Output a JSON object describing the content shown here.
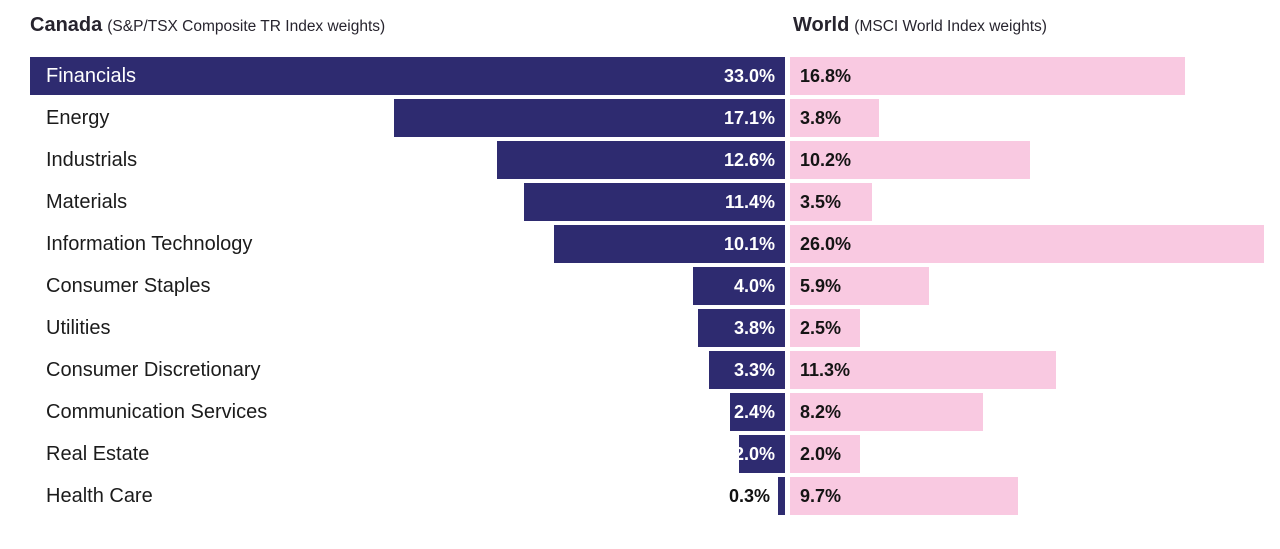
{
  "header": {
    "left_title": "Canada",
    "left_subtitle": "(S&P/TSX Composite TR Index weights)",
    "right_title": "World",
    "right_subtitle": "(MSCI World Index weights)"
  },
  "colors": {
    "canada_bar": "#2e2b70",
    "world_bar": "#f9c9e1"
  },
  "chart_data": {
    "type": "bar",
    "variant": "paired-horizontal-comparison",
    "title": "",
    "legend_position": "column headers (top)",
    "grid": false,
    "categories": [
      "Financials",
      "Energy",
      "Industrials",
      "Materials",
      "Information Technology",
      "Consumer Staples",
      "Utilities",
      "Consumer Discretionary",
      "Communication Services",
      "Real Estate",
      "Health Care"
    ],
    "series": [
      {
        "name": "Canada (S&P/TSX Composite TR Index weights)",
        "values": [
          33.0,
          17.1,
          12.6,
          11.4,
          10.1,
          4.0,
          3.8,
          3.3,
          2.4,
          2.0,
          0.3
        ]
      },
      {
        "name": "World (MSCI World Index weights)",
        "values": [
          16.8,
          3.8,
          10.2,
          3.5,
          26.0,
          5.9,
          2.5,
          11.3,
          8.2,
          2.0,
          9.7
        ]
      }
    ],
    "value_labels": {
      "canada": [
        "33.0%",
        "17.1%",
        "12.6%",
        "11.4%",
        "10.1%",
        "4.0%",
        "3.8%",
        "3.3%",
        "2.4%",
        "2.0%",
        "0.3%"
      ],
      "world": [
        "16.8%",
        "3.8%",
        "10.2%",
        "3.5%",
        "26.0%",
        "5.9%",
        "2.5%",
        "11.3%",
        "8.2%",
        "2.0%",
        "9.7%"
      ]
    },
    "canada_axis_range": [
      0,
      33
    ],
    "world_axis_range": [
      0,
      26
    ],
    "units": "percent"
  }
}
